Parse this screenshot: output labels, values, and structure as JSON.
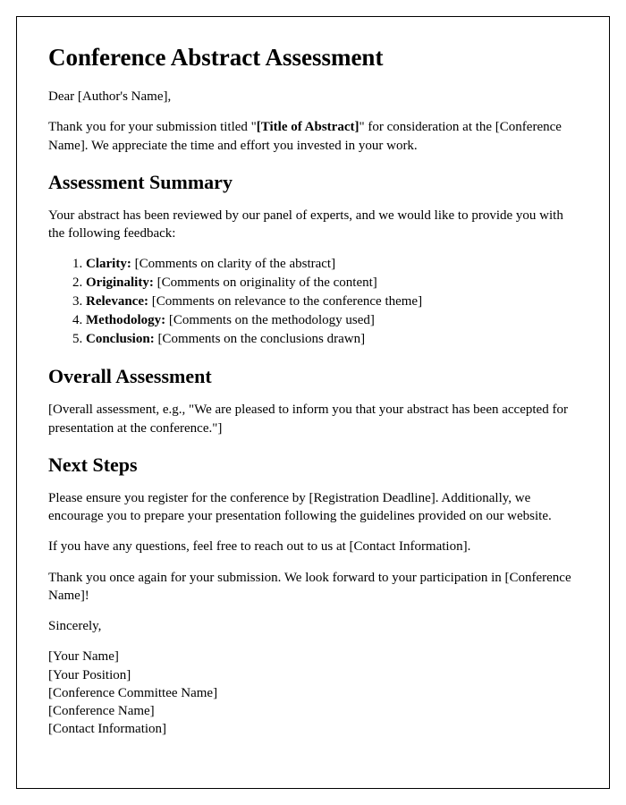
{
  "title": "Conference Abstract Assessment",
  "greeting": "Dear [Author's Name],",
  "intro_part1": "Thank you for your submission titled \"",
  "intro_bold": "[Title of Abstract]",
  "intro_part2": "\" for consideration at the [Conference Name]. We appreciate the time and effort you invested in your work.",
  "section1_heading": "Assessment Summary",
  "section1_intro": "Your abstract has been reviewed by our panel of experts, and we would like to provide you with the following feedback:",
  "criteria": [
    {
      "label": "Clarity:",
      "comment": " [Comments on clarity of the abstract]"
    },
    {
      "label": "Originality:",
      "comment": " [Comments on originality of the content]"
    },
    {
      "label": "Relevance:",
      "comment": " [Comments on relevance to the conference theme]"
    },
    {
      "label": "Methodology:",
      "comment": " [Comments on the methodology used]"
    },
    {
      "label": "Conclusion:",
      "comment": " [Comments on the conclusions drawn]"
    }
  ],
  "section2_heading": "Overall Assessment",
  "overall_text": "[Overall assessment, e.g., \"We are pleased to inform you that your abstract has been accepted for presentation at the conference.\"]",
  "section3_heading": "Next Steps",
  "nextsteps_p1": "Please ensure you register for the conference by [Registration Deadline]. Additionally, we encourage you to prepare your presentation following the guidelines provided on our website.",
  "nextsteps_p2": "If you have any questions, feel free to reach out to us at [Contact Information].",
  "nextsteps_p3": "Thank you once again for your submission. We look forward to your participation in [Conference Name]!",
  "closing": "Sincerely,",
  "signature": [
    "[Your Name]",
    "[Your Position]",
    "[Conference Committee Name]",
    "[Conference Name]",
    "[Contact Information]"
  ]
}
